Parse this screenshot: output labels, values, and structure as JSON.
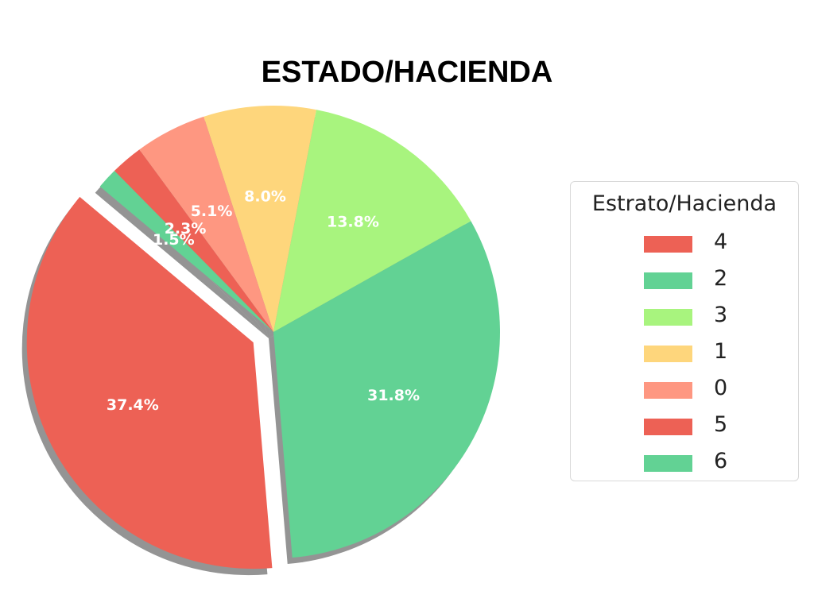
{
  "chart_data": {
    "type": "pie",
    "title": "ESTADO/HACIENDA",
    "legend_title": "Estrato/Hacienda",
    "legend_placement": "right",
    "start_angle_deg": 140,
    "direction": "counterclockwise",
    "shadow": true,
    "explode": [
      0.1,
      0,
      0,
      0,
      0,
      0,
      0
    ],
    "slices": [
      {
        "label": "4",
        "value": 37.4,
        "pct_label": "37.4%",
        "color": "#ed6155"
      },
      {
        "label": "2",
        "value": 31.8,
        "pct_label": "31.8%",
        "color": "#62d294"
      },
      {
        "label": "3",
        "value": 13.8,
        "pct_label": "13.8%",
        "color": "#a8f47e"
      },
      {
        "label": "1",
        "value": 8.0,
        "pct_label": "8.0%",
        "color": "#fed67c"
      },
      {
        "label": "0",
        "value": 5.1,
        "pct_label": "5.1%",
        "color": "#fe9781"
      },
      {
        "label": "5",
        "value": 2.3,
        "pct_label": "2.3%",
        "color": "#ed6155"
      },
      {
        "label": "6",
        "value": 1.5,
        "pct_label": "1.5%",
        "color": "#62d294"
      }
    ]
  }
}
